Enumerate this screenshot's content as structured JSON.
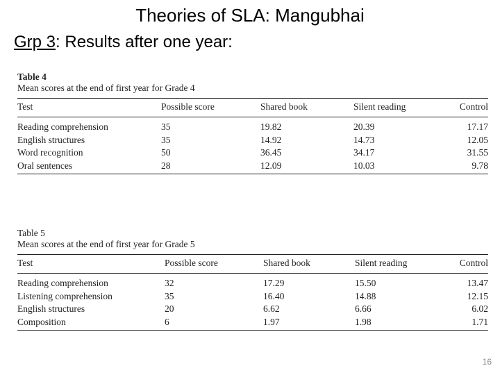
{
  "slide": {
    "title": "Theories of SLA:  Mangubhai",
    "subtitle_group": "Grp 3",
    "subtitle_rest": ":  Results after one year:",
    "page_number": "16"
  },
  "tables": [
    {
      "label": "Table 4",
      "caption": "Mean scores at the end of first year for Grade 4",
      "columns": [
        "Test",
        "Possible score",
        "Shared book",
        "Silent reading",
        "Control"
      ],
      "rows": [
        [
          "Reading comprehension",
          "35",
          "19.82",
          "20.39",
          "17.17"
        ],
        [
          "English structures",
          "35",
          "14.92",
          "14.73",
          "12.05"
        ],
        [
          "Word recognition",
          "50",
          "36.45",
          "34.17",
          "31.55"
        ],
        [
          "Oral sentences",
          "28",
          "12.09",
          "10.03",
          "9.78"
        ]
      ]
    },
    {
      "label": "Table 5",
      "caption": "Mean scores at the end of first year for Grade 5",
      "columns": [
        "Test",
        "Possible score",
        "Shared book",
        "Silent reading",
        "Control"
      ],
      "rows": [
        [
          "Reading comprehension",
          "32",
          "17.29",
          "15.50",
          "13.47"
        ],
        [
          "Listening comprehension",
          "35",
          "16.40",
          "14.88",
          "12.15"
        ],
        [
          "English structures",
          "20",
          "6.62",
          "6.66",
          "6.02"
        ],
        [
          "Composition",
          "6",
          "1.97",
          "1.98",
          "1.71"
        ]
      ]
    }
  ]
}
